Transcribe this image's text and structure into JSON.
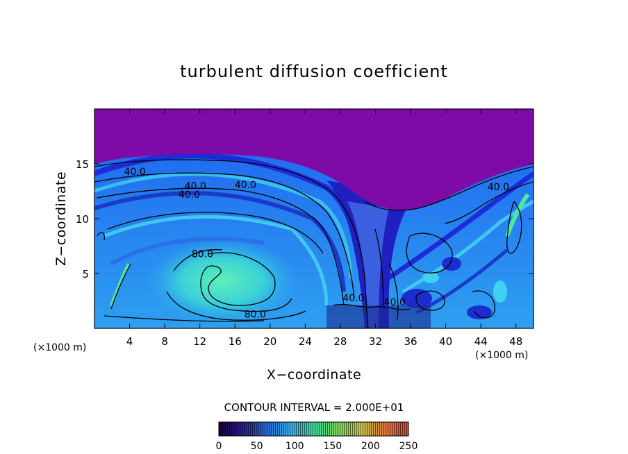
{
  "chart_data": {
    "type": "heatmap",
    "title": "turbulent diffusion coefficient",
    "xlabel": "X−coordinate",
    "ylabel": "Z−coordinate",
    "x_unit": "(×1000 m)",
    "y_unit": "(×1000 m)",
    "xlim": [
      0,
      50
    ],
    "ylim": [
      0,
      20
    ],
    "x_ticks": [
      "4",
      "8",
      "12",
      "16",
      "20",
      "24",
      "28",
      "32",
      "36",
      "40",
      "44",
      "48"
    ],
    "y_ticks": [
      "5",
      "10",
      "15"
    ],
    "contour_interval_label": "CONTOUR INTERVAL = 2.000E+01",
    "colorbar": {
      "range": [
        0,
        250
      ],
      "tick_labels": [
        "0",
        "50",
        "100",
        "150",
        "200",
        "250"
      ]
    },
    "contour_labels": [
      {
        "text": "40.0",
        "x": 4.6,
        "z": 14.3
      },
      {
        "text": "40.0",
        "x": 10.8,
        "z": 12.2
      },
      {
        "text": "40.0",
        "x": 11.5,
        "z": 13.0
      },
      {
        "text": "40.0",
        "x": 17.2,
        "z": 13.1
      },
      {
        "text": "80.0",
        "x": 12.3,
        "z": 6.8
      },
      {
        "text": "80.0",
        "x": 18.3,
        "z": 1.3
      },
      {
        "text": "40.0",
        "x": 29.5,
        "z": 2.8
      },
      {
        "text": "40.0",
        "x": 34.2,
        "z": 2.4
      },
      {
        "text": "40.0",
        "x": 46.0,
        "z": 12.9
      }
    ]
  }
}
